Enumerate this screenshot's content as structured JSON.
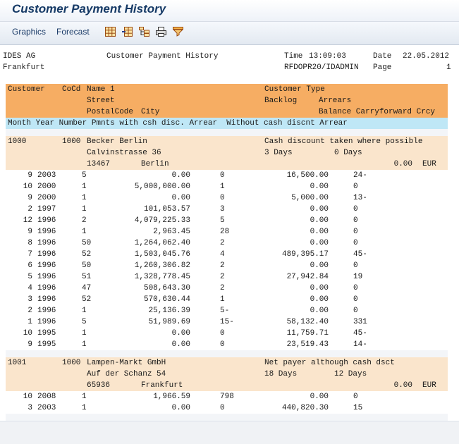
{
  "window": {
    "title": "Customer Payment History"
  },
  "toolbar": {
    "graphics_label": "Graphics",
    "forecast_label": "Forecast",
    "icons": [
      "grid-icon",
      "add-column-icon",
      "tree-icon",
      "print-icon",
      "filter-icon"
    ]
  },
  "report_header": {
    "company": "IDES AG",
    "city": "Frankfurt",
    "title": "Customer Payment History",
    "time_label": "Time",
    "time": "13:09:03",
    "date_label": "Date",
    "date": "22.05.2012",
    "program": "RFDOPR20/IDADMIN",
    "page_label": "Page",
    "page": "1"
  },
  "columns": {
    "row1": {
      "customer": "Customer",
      "cocd": "CoCd",
      "name": "Name 1",
      "type": "Customer Type"
    },
    "row2": {
      "street": "Street",
      "backlog": "Backlog",
      "arrears": "Arrears"
    },
    "row3": {
      "postal": "PostalCode",
      "city": "City",
      "balance": "Balance Carryforward Crcy"
    },
    "row4": "Month Year Number Pmnts with csh disc. Arrear  Without cash discnt Arrear"
  },
  "customers": [
    {
      "customer": "1000",
      "cocd": "1000",
      "name": "Becker Berlin",
      "type": "Cash discount taken where possible",
      "street": "Calvinstrasse 36",
      "backlog": "3 Days",
      "arrears": "0 Days",
      "postal": "13467",
      "city": "Berlin",
      "balance": "0.00",
      "currency": "EUR",
      "rows": [
        {
          "month": "9",
          "year": "2003",
          "number": "5",
          "with_disc": "0.00",
          "arrear1": "0",
          "without_disc": "16,500.00",
          "arrear2": "24-"
        },
        {
          "month": "10",
          "year": "2000",
          "number": "1",
          "with_disc": "5,000,000.00",
          "arrear1": "1",
          "without_disc": "0.00",
          "arrear2": "0"
        },
        {
          "month": "9",
          "year": "2000",
          "number": "1",
          "with_disc": "0.00",
          "arrear1": "0",
          "without_disc": "5,000.00",
          "arrear2": "13-"
        },
        {
          "month": "2",
          "year": "1997",
          "number": "1",
          "with_disc": "101,053.57",
          "arrear1": "3",
          "without_disc": "0.00",
          "arrear2": "0"
        },
        {
          "month": "12",
          "year": "1996",
          "number": "2",
          "with_disc": "4,079,225.33",
          "arrear1": "5",
          "without_disc": "0.00",
          "arrear2": "0"
        },
        {
          "month": "9",
          "year": "1996",
          "number": "1",
          "with_disc": "2,963.45",
          "arrear1": "28",
          "without_disc": "0.00",
          "arrear2": "0"
        },
        {
          "month": "8",
          "year": "1996",
          "number": "50",
          "with_disc": "1,264,062.40",
          "arrear1": "2",
          "without_disc": "0.00",
          "arrear2": "0"
        },
        {
          "month": "7",
          "year": "1996",
          "number": "52",
          "with_disc": "1,503,045.76",
          "arrear1": "4",
          "without_disc": "489,395.17",
          "arrear2": "45-"
        },
        {
          "month": "6",
          "year": "1996",
          "number": "50",
          "with_disc": "1,260,306.82",
          "arrear1": "2",
          "without_disc": "0.00",
          "arrear2": "0"
        },
        {
          "month": "5",
          "year": "1996",
          "number": "51",
          "with_disc": "1,328,778.45",
          "arrear1": "2",
          "without_disc": "27,942.84",
          "arrear2": "19"
        },
        {
          "month": "4",
          "year": "1996",
          "number": "47",
          "with_disc": "508,643.30",
          "arrear1": "2",
          "without_disc": "0.00",
          "arrear2": "0"
        },
        {
          "month": "3",
          "year": "1996",
          "number": "52",
          "with_disc": "570,630.44",
          "arrear1": "1",
          "without_disc": "0.00",
          "arrear2": "0"
        },
        {
          "month": "2",
          "year": "1996",
          "number": "1",
          "with_disc": "25,136.39",
          "arrear1": "5-",
          "without_disc": "0.00",
          "arrear2": "0"
        },
        {
          "month": "1",
          "year": "1996",
          "number": "5",
          "with_disc": "51,989.69",
          "arrear1": "15-",
          "without_disc": "58,132.40",
          "arrear2": "331"
        },
        {
          "month": "10",
          "year": "1995",
          "number": "1",
          "with_disc": "0.00",
          "arrear1": "0",
          "without_disc": "11,759.71",
          "arrear2": "45-"
        },
        {
          "month": "9",
          "year": "1995",
          "number": "1",
          "with_disc": "0.00",
          "arrear1": "0",
          "without_disc": "23,519.43",
          "arrear2": "14-"
        }
      ]
    },
    {
      "customer": "1001",
      "cocd": "1000",
      "name": "Lampen-Markt GmbH",
      "type": "Net payer although cash dsct",
      "street": "Auf der Schanz 54",
      "backlog": "18 Days",
      "arrears": "12 Days",
      "postal": "65936",
      "city": "Frankfurt",
      "balance": "0.00",
      "currency": "EUR",
      "rows": [
        {
          "month": "10",
          "year": "2008",
          "number": "1",
          "with_disc": "1,966.59",
          "arrear1": "798",
          "without_disc": "0.00",
          "arrear2": "0"
        },
        {
          "month": "3",
          "year": "2003",
          "number": "1",
          "with_disc": "0.00",
          "arrear1": "0",
          "without_disc": "440,820.30",
          "arrear2": "15"
        }
      ]
    }
  ]
}
